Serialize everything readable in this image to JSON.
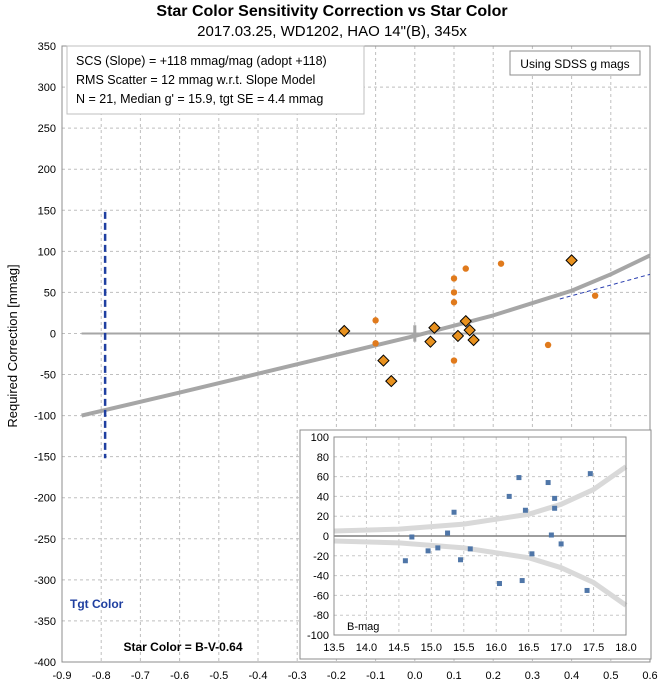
{
  "chart_data": [
    {
      "type": "scatter",
      "title": "Star Color Sensitivity Correction vs Star Color",
      "subtitle": "2017.03.25, WD1202, HAO 14\"(B), 345x",
      "xlabel": "Star Color = B-V-0.64",
      "ylabel": "Required Correction [mmag]",
      "xlim": [
        -0.9,
        0.6
      ],
      "ylim": [
        -400,
        350
      ],
      "xticks": [
        "-0.9",
        "-0.8",
        "-0.7",
        "-0.6",
        "-0.5",
        "-0.4",
        "-0.3",
        "-0.2",
        "-0.1",
        "0.0",
        "0.1",
        "0.2",
        "0.3",
        "0.4",
        "0.5",
        "0.6"
      ],
      "yticks": [
        "-400",
        "-350",
        "-300",
        "-250",
        "-200",
        "-150",
        "-100",
        "-50",
        "0",
        "50",
        "100",
        "150",
        "200",
        "250",
        "300",
        "350"
      ],
      "grid": true,
      "info_box": [
        "SCS (Slope)  =  +118 mmag/mag (adopt +118)",
        "RMS Scatter = 12 mmag w.r.t. Slope Model",
        "N = 21,  Median g' = 15.9, tgt SE =  4.4 mmag"
      ],
      "note_box": "Using SDSS g mags",
      "tgt_label": "Tgt Color",
      "tgt_color_x": -0.79,
      "colors": {
        "diamond": "#e8911e",
        "diamond_edge": "#000000",
        "dot": "#e07a1c",
        "model": "#a6a6a6",
        "target": "#1f3fa0",
        "slope": "#2b3fb0"
      },
      "series": [
        {
          "marker": "diamond",
          "points": [
            [
              -0.18,
              3
            ],
            [
              -0.08,
              -33
            ],
            [
              -0.06,
              -58
            ],
            [
              0.04,
              -10
            ],
            [
              0.05,
              7
            ],
            [
              0.11,
              -3
            ],
            [
              0.13,
              15
            ],
            [
              0.14,
              4
            ],
            [
              0.15,
              -8
            ],
            [
              0.4,
              89
            ]
          ]
        },
        {
          "marker": "dot",
          "points": [
            [
              -0.1,
              16
            ],
            [
              -0.1,
              -12
            ],
            [
              0.1,
              67
            ],
            [
              0.1,
              50
            ],
            [
              0.1,
              38
            ],
            [
              0.1,
              -33
            ],
            [
              0.13,
              79
            ],
            [
              0.22,
              85
            ],
            [
              0.34,
              -14
            ],
            [
              0.46,
              46
            ]
          ]
        }
      ],
      "model_curve": [
        [
          -0.85,
          -100
        ],
        [
          -0.6,
          -72
        ],
        [
          -0.4,
          -49
        ],
        [
          -0.2,
          -26
        ],
        [
          0,
          -3
        ],
        [
          0.2,
          22
        ],
        [
          0.4,
          52
        ],
        [
          0.5,
          72
        ],
        [
          0.6,
          95
        ]
      ],
      "slope_line": [
        [
          0.37,
          42
        ],
        [
          0.6,
          72
        ]
      ]
    },
    {
      "type": "scatter",
      "xlabel": "B-mag",
      "xlim": [
        13.5,
        18.0
      ],
      "ylim": [
        -100,
        100
      ],
      "xticks": [
        "13.5",
        "14.0",
        "14.5",
        "15.0",
        "15.5",
        "16.0",
        "16.5",
        "17.0",
        "17.5",
        "18.0"
      ],
      "yticks": [
        "100",
        "80",
        "60",
        "40",
        "20",
        "0",
        "-20",
        "-40",
        "-60",
        "-80",
        "-100"
      ],
      "points": [
        [
          14.6,
          -25
        ],
        [
          14.7,
          -1
        ],
        [
          14.95,
          -15
        ],
        [
          15.1,
          -12
        ],
        [
          15.25,
          3
        ],
        [
          15.35,
          24
        ],
        [
          15.45,
          -24
        ],
        [
          15.6,
          -13
        ],
        [
          16.05,
          -48
        ],
        [
          16.2,
          40
        ],
        [
          16.35,
          59
        ],
        [
          16.4,
          -45
        ],
        [
          16.45,
          26
        ],
        [
          16.55,
          -18
        ],
        [
          16.8,
          54
        ],
        [
          16.85,
          1
        ],
        [
          16.9,
          38
        ],
        [
          16.9,
          28
        ],
        [
          17.0,
          -8
        ],
        [
          17.4,
          -55
        ],
        [
          17.45,
          63
        ]
      ],
      "envelope_upper": [
        [
          13.5,
          5
        ],
        [
          14.5,
          7
        ],
        [
          15.5,
          12
        ],
        [
          16.5,
          22
        ],
        [
          17.0,
          32
        ],
        [
          17.5,
          47
        ],
        [
          18.0,
          70
        ]
      ],
      "envelope_lower": [
        [
          13.5,
          -5
        ],
        [
          14.5,
          -7
        ],
        [
          15.5,
          -12
        ],
        [
          16.5,
          -22
        ],
        [
          17.0,
          -32
        ],
        [
          17.5,
          -47
        ],
        [
          18.0,
          -70
        ]
      ]
    }
  ]
}
